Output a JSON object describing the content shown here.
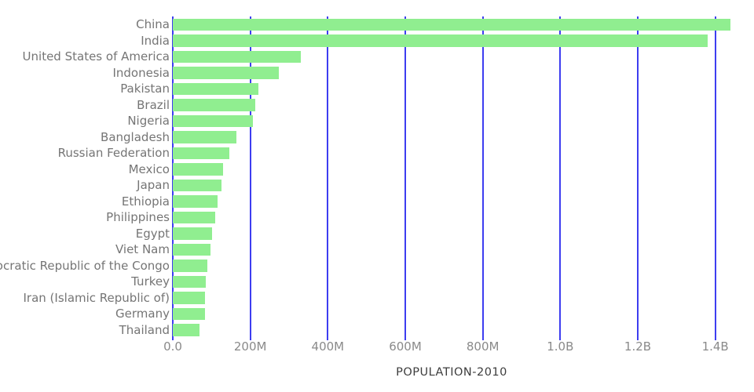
{
  "chart_data": {
    "type": "bar",
    "orientation": "horizontal",
    "title": "",
    "xlabel": "POPULATION-2010",
    "ylabel": "",
    "categories": [
      "China",
      "India",
      "United States of America",
      "Indonesia",
      "Pakistan",
      "Brazil",
      "Nigeria",
      "Bangladesh",
      "Russian Federation",
      "Mexico",
      "Japan",
      "Ethiopia",
      "Philippines",
      "Egypt",
      "Viet Nam",
      "Democratic Republic of the Congo",
      "Turkey",
      "Iran (Islamic Republic of)",
      "Germany",
      "Thailand"
    ],
    "values_millions": [
      1439.3,
      1380.0,
      331.0,
      273.5,
      220.9,
      212.6,
      206.1,
      164.7,
      145.9,
      128.9,
      126.5,
      115.0,
      109.6,
      102.3,
      97.3,
      89.6,
      84.3,
      84.0,
      83.8,
      69.8
    ],
    "x_tick_labels": [
      "0.0",
      "200M",
      "400M",
      "600M",
      "800M",
      "1.0B",
      "1.2B",
      "1.4B"
    ],
    "x_tick_values_millions": [
      0,
      200,
      400,
      600,
      800,
      1000,
      1200,
      1400
    ],
    "xlim_millions": [
      0,
      1500
    ],
    "grid": "vertical-only",
    "legend": "none",
    "sort_order": "descending",
    "colors": {
      "bar": "#90ee90",
      "gridline": "#3d3df0",
      "category_label": "#757575",
      "tick_label": "#8a8a8a",
      "axis_title": "#3d3d3d",
      "background": "#ffffff"
    }
  }
}
